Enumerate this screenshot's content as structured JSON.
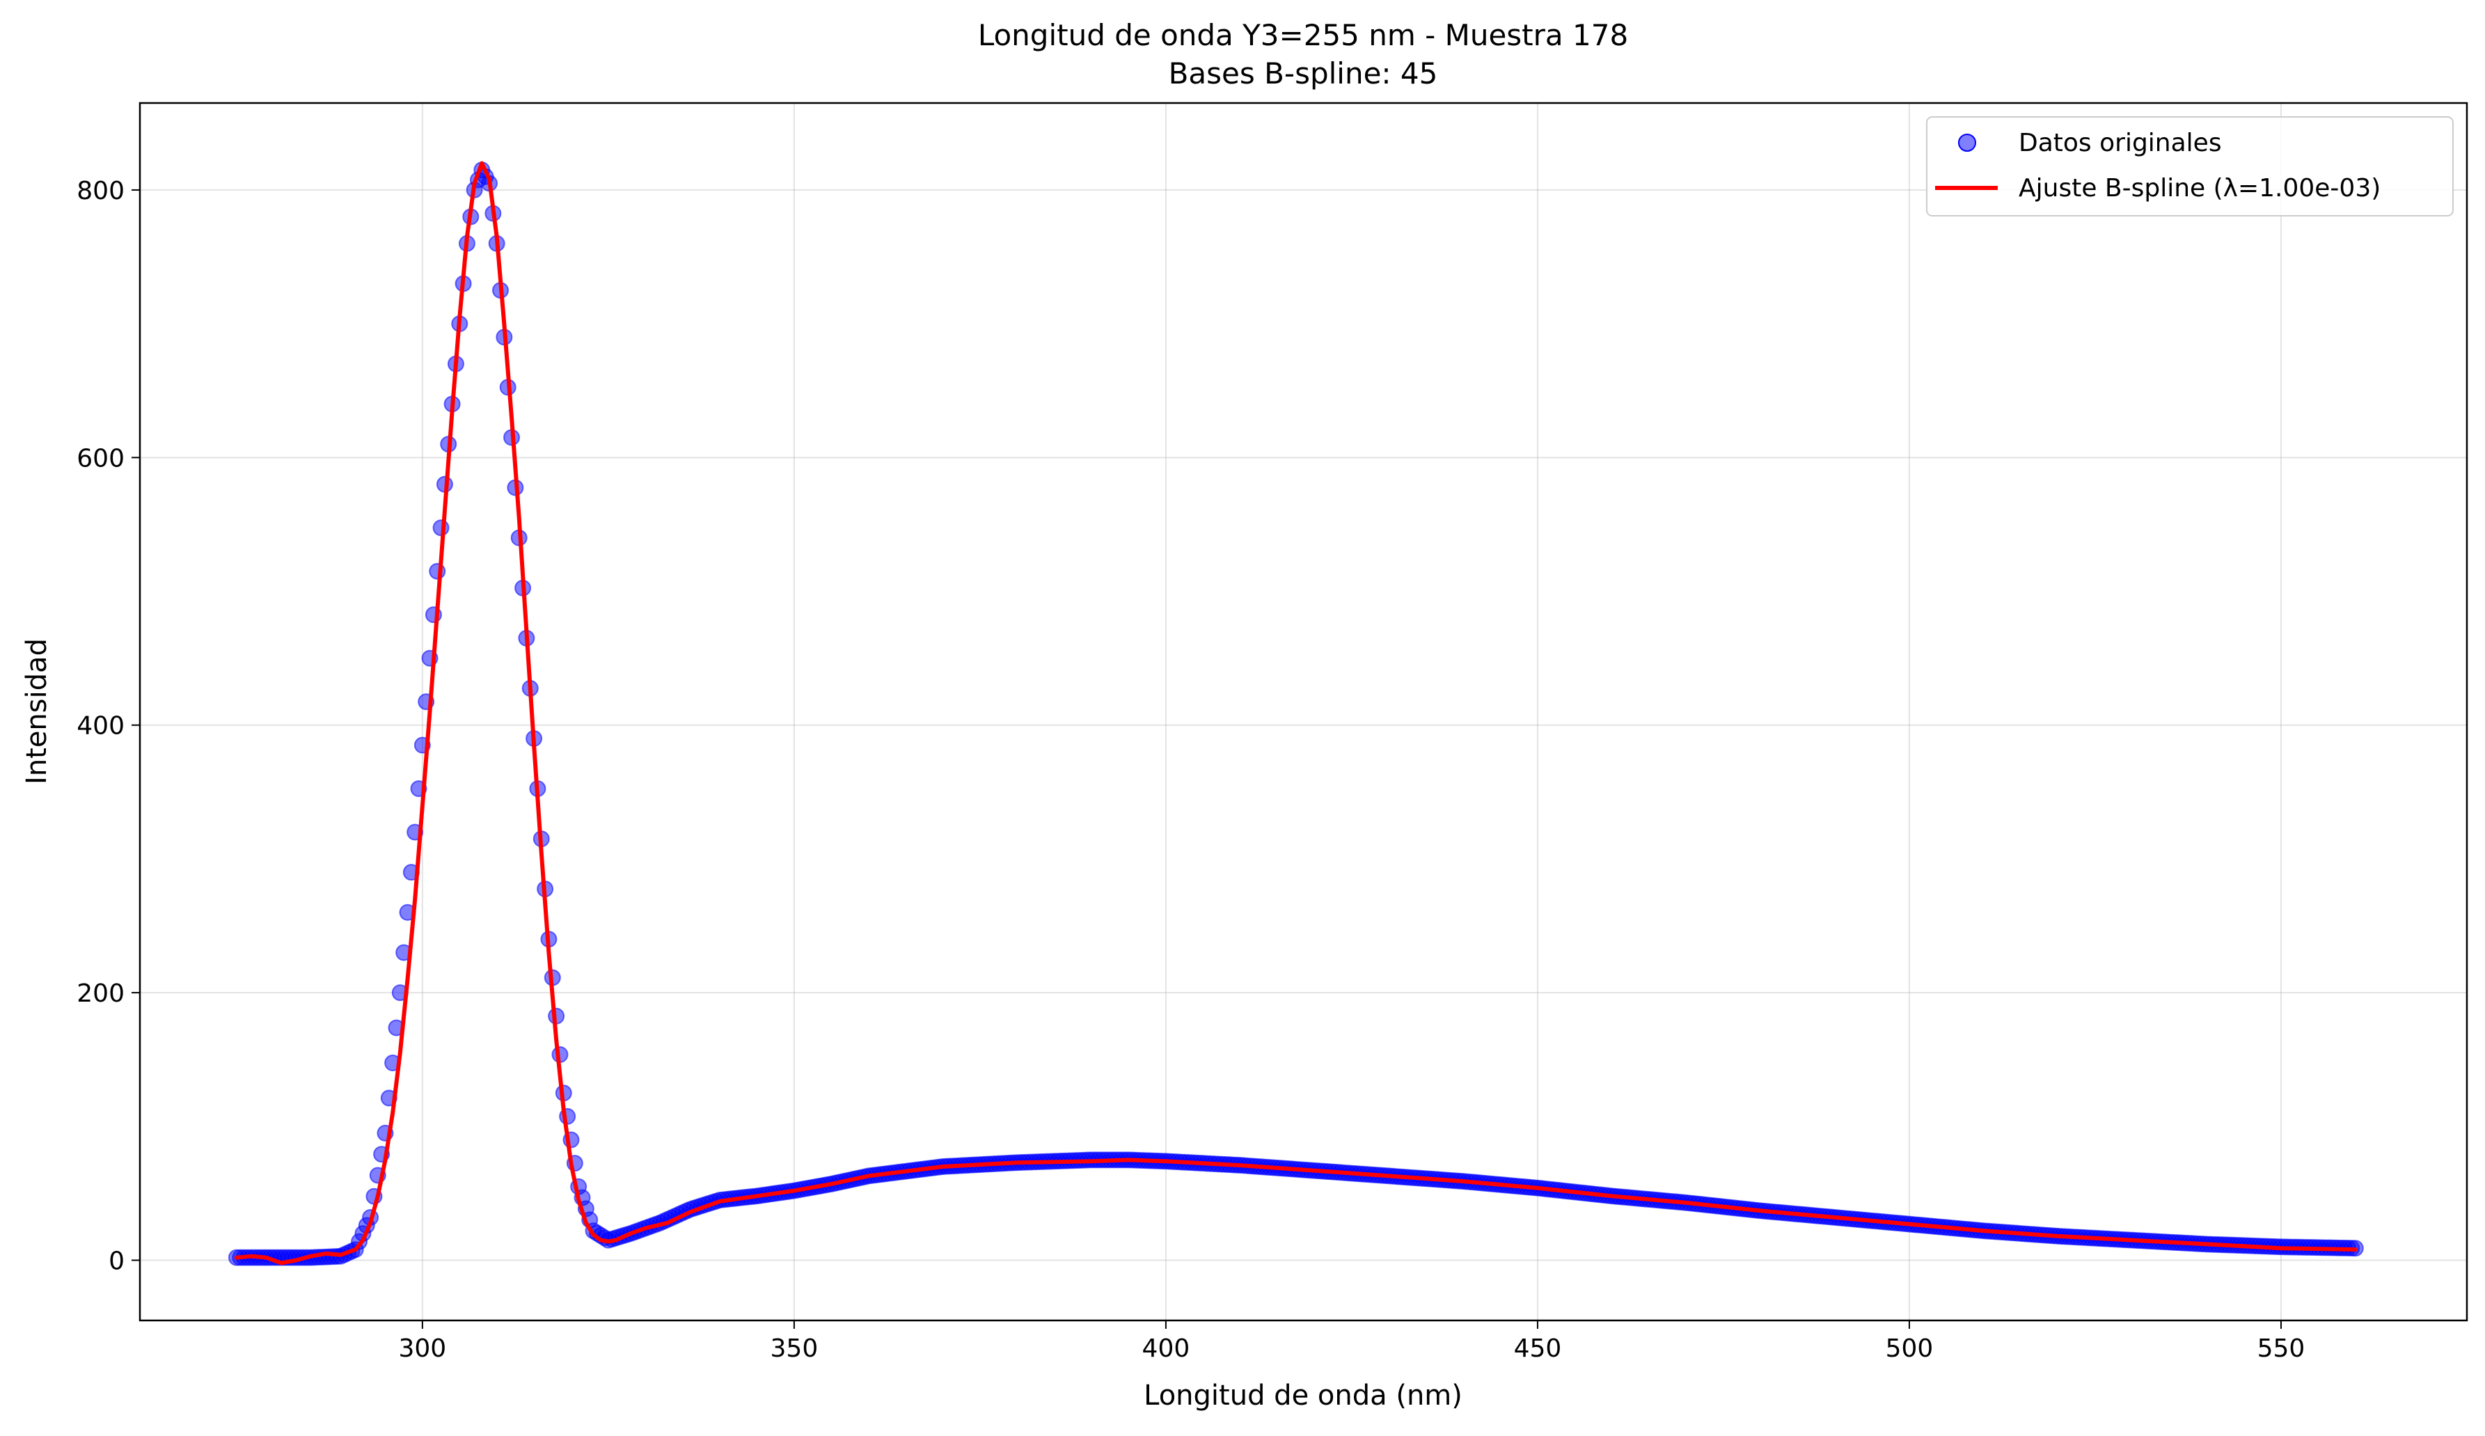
{
  "chart_data": {
    "type": "scatter",
    "title": "Longitud de onda Y3=255 nm - Muestra 178",
    "subtitle": "Bases B-spline: 45",
    "xlabel": "Longitud de onda (nm)",
    "ylabel": "Intensidad",
    "xlim": [
      262,
      575
    ],
    "ylim": [
      -45,
      865
    ],
    "xticks": [
      300,
      350,
      400,
      450,
      500,
      550
    ],
    "yticks": [
      0,
      200,
      400,
      600,
      800
    ],
    "xtick_labels": [
      "300",
      "350",
      "400",
      "450",
      "500",
      "550"
    ],
    "ytick_labels": [
      "0",
      "200",
      "400",
      "600",
      "800"
    ],
    "grid": true,
    "legend_position": "top-right",
    "series": [
      {
        "name": "Datos originales",
        "kind": "scatter",
        "color": "#0000ff",
        "x_start": 275,
        "x_step": 0.5,
        "profile_x": [
          275,
          280,
          285,
          289,
          291,
          293,
          295,
          297,
          299,
          301,
          303,
          305,
          306,
          307,
          308,
          309,
          310,
          311,
          313,
          315,
          317,
          319,
          321,
          323,
          325,
          328,
          332,
          336,
          340,
          345,
          350,
          355,
          360,
          370,
          380,
          390,
          395,
          400,
          410,
          420,
          430,
          440,
          450,
          460,
          470,
          480,
          490,
          500,
          510,
          520,
          530,
          540,
          550,
          560
        ],
        "profile_y": [
          2,
          2,
          2,
          3,
          8,
          32,
          95,
          200,
          320,
          450,
          580,
          700,
          760,
          800,
          815,
          805,
          760,
          690,
          540,
          390,
          240,
          125,
          55,
          22,
          15,
          20,
          28,
          38,
          45,
          48,
          52,
          57,
          63,
          70,
          73,
          75,
          75,
          74,
          71,
          67,
          63,
          59,
          54,
          48,
          43,
          37,
          32,
          27,
          22,
          18,
          15,
          12,
          10,
          9
        ]
      },
      {
        "name": "Ajuste B-spline (λ=1.00e-03)",
        "kind": "line",
        "color": "#ff0000",
        "x": [
          275,
          277,
          279,
          281,
          283,
          285,
          287,
          289,
          291,
          292,
          293,
          294,
          295,
          296,
          297,
          298,
          299,
          300,
          301,
          302,
          303,
          304,
          305,
          306,
          307,
          308,
          309,
          310,
          311,
          312,
          313,
          314,
          315,
          316,
          317,
          318,
          319,
          320,
          321,
          322,
          323,
          324,
          325,
          326,
          328,
          330,
          333,
          336,
          340,
          345,
          350,
          355,
          360,
          370,
          380,
          390,
          395,
          400,
          410,
          420,
          430,
          440,
          450,
          460,
          470,
          480,
          490,
          500,
          510,
          520,
          530,
          540,
          550,
          560
        ],
        "y": [
          2,
          3,
          2,
          -2,
          0,
          3,
          5,
          4,
          8,
          15,
          28,
          48,
          75,
          110,
          155,
          210,
          270,
          340,
          410,
          485,
          560,
          635,
          705,
          765,
          805,
          820,
          808,
          765,
          700,
          630,
          555,
          470,
          385,
          305,
          230,
          165,
          112,
          72,
          45,
          28,
          19,
          15,
          14,
          15,
          20,
          24,
          28,
          36,
          44,
          48,
          52,
          57,
          63,
          70,
          73,
          74,
          75,
          74,
          71,
          67,
          63,
          59,
          54,
          48,
          43,
          37,
          32,
          27,
          22,
          18,
          15,
          12,
          9,
          8
        ]
      }
    ]
  }
}
